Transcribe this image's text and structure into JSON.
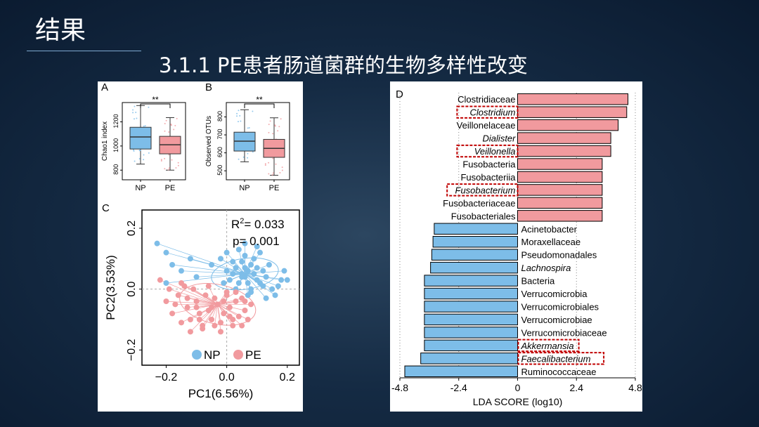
{
  "header": {
    "title": "结果",
    "subtitle": "3.1.1 PE患者肠道菌群的生物多样性改变"
  },
  "colors": {
    "np": "#7dbde8",
    "pe": "#f19a9e",
    "highlight": "#c00000"
  },
  "chart_data": [
    {
      "type": "box",
      "panel": "A",
      "ylabel": "Chao1 index",
      "categories": [
        "NP",
        "PE"
      ],
      "yticks": [
        800,
        1000,
        1200
      ],
      "ylim": [
        720,
        1360
      ],
      "significance": "**",
      "boxes": [
        {
          "min": 850,
          "q1": 975,
          "median": 1075,
          "q3": 1155,
          "max": 1335
        },
        {
          "min": 800,
          "q1": 935,
          "median": 1010,
          "q3": 1080,
          "max": 1235
        }
      ]
    },
    {
      "type": "box",
      "panel": "B",
      "ylabel": "Observed OTUs",
      "categories": [
        "NP",
        "PE"
      ],
      "yticks": [
        500,
        600,
        700,
        800
      ],
      "ylim": [
        450,
        880
      ],
      "significance": "**",
      "boxes": [
        {
          "min": 550,
          "q1": 610,
          "median": 665,
          "q3": 715,
          "max": 840
        },
        {
          "min": 475,
          "q1": 575,
          "median": 625,
          "q3": 675,
          "max": 795
        }
      ]
    },
    {
      "type": "scatter",
      "panel": "C",
      "xlabel": "PC1(6.56%)",
      "ylabel": "PC2(3.53%)",
      "xticks": [
        "−0.2",
        "0.0",
        "0.2"
      ],
      "yticks": [
        "0.2",
        "0.0",
        "−0.2"
      ],
      "xlim": [
        -0.28,
        0.24
      ],
      "ylim": [
        -0.25,
        0.26
      ],
      "r2_label": "R",
      "r2_sup": "2",
      "r2_value": "= 0.033",
      "p_text": "p= 0.001",
      "legend": [
        "NP",
        "PE"
      ],
      "centroids": [
        [
          0.06,
          0.05
        ],
        [
          -0.03,
          -0.05
        ]
      ],
      "series": [
        {
          "name": "NP",
          "x": [
            -0.23,
            -0.2,
            -0.18,
            -0.15,
            -0.12,
            -0.2,
            -0.1,
            -0.05,
            -0.02,
            0.0,
            0.01,
            0.02,
            0.03,
            0.04,
            0.05,
            0.05,
            0.06,
            0.06,
            0.07,
            0.07,
            0.08,
            0.08,
            0.09,
            0.1,
            0.1,
            0.11,
            0.12,
            0.12,
            0.13,
            0.14,
            0.15,
            0.16,
            0.18,
            0.19,
            0.04,
            0.06,
            0.08,
            0.03,
            0.02,
            0.09,
            0.11,
            0.05,
            0.07,
            0.0,
            -0.01,
            0.1,
            0.13,
            0.17,
            0.2,
            0.06
          ],
          "y": [
            0.15,
            0.12,
            0.08,
            0.06,
            0.1,
            0.02,
            0.04,
            0.08,
            0.1,
            0.06,
            0.03,
            0.05,
            0.07,
            0.02,
            0.05,
            0.09,
            0.04,
            0.11,
            0.06,
            0.02,
            0.08,
            0.0,
            0.05,
            0.07,
            0.03,
            0.12,
            0.06,
            0.01,
            0.04,
            0.08,
            0.0,
            -0.02,
            0.03,
            0.06,
            0.13,
            0.15,
            -0.01,
            0.0,
            0.09,
            0.1,
            0.02,
            0.04,
            -0.02,
            0.12,
            0.02,
            0.14,
            -0.03,
            0.01,
            0.03,
            0.07
          ]
        },
        {
          "name": "PE",
          "x": [
            -0.22,
            -0.2,
            -0.19,
            -0.18,
            -0.16,
            -0.15,
            -0.14,
            -0.13,
            -0.12,
            -0.11,
            -0.1,
            -0.09,
            -0.08,
            -0.07,
            -0.06,
            -0.05,
            -0.04,
            -0.03,
            -0.02,
            -0.01,
            0.0,
            0.01,
            0.02,
            0.03,
            0.04,
            0.05,
            0.06,
            0.07,
            0.08,
            -0.12,
            -0.08,
            -0.02,
            0.02,
            -0.15,
            -0.06,
            0.0,
            0.05,
            -0.1,
            -0.04,
            0.03,
            -0.17,
            -0.09,
            -0.01,
            0.06,
            -0.13,
            -0.05,
            0.01
          ],
          "y": [
            0.03,
            -0.04,
            0.0,
            -0.08,
            -0.02,
            -0.11,
            0.01,
            -0.06,
            -0.1,
            0.0,
            -0.04,
            -0.08,
            -0.13,
            -0.02,
            -0.07,
            -0.1,
            -0.03,
            -0.05,
            -0.11,
            -0.08,
            -0.02,
            -0.06,
            -0.12,
            -0.04,
            -0.09,
            -0.03,
            -0.07,
            -0.1,
            -0.05,
            -0.14,
            -0.12,
            -0.14,
            -0.1,
            0.02,
            0.01,
            -0.01,
            -0.12,
            -0.06,
            -0.12,
            -0.01,
            -0.05,
            -0.1,
            -0.04,
            -0.04,
            -0.03,
            -0.06,
            -0.09
          ]
        }
      ]
    },
    {
      "type": "bar",
      "panel": "D",
      "orientation": "horizontal",
      "xlabel": "LDA SCORE (log10)",
      "xticks": [
        "-4.8",
        "-2.4",
        "0",
        "2.4",
        "4.8"
      ],
      "xlim": [
        -4.8,
        4.8
      ],
      "categories": [
        "Clostridiaceae",
        "Clostridium",
        "Veillonelaceae",
        "Dialister",
        "Veillonella",
        "Fusobacteria",
        "Fusobacteriia",
        "Fusobacterium",
        "Fusobacteriaceae",
        "Fusobacteriales",
        "Acinetobacter",
        "Moraxellaceae",
        "Pseudomonadales",
        "Lachnospira",
        "Bacteria",
        "Verrucomicrobia",
        "Verrucomicrobiales",
        "Verrucomicrobiae",
        "Verrucomicrobiaceae",
        "Akkermansia",
        "Faecalibacterium",
        "Ruminococcaceae"
      ],
      "values": [
        4.5,
        4.45,
        4.1,
        3.8,
        3.8,
        3.45,
        3.45,
        3.45,
        3.45,
        3.45,
        -3.4,
        -3.45,
        -3.5,
        -3.55,
        -3.8,
        -3.8,
        -3.8,
        -3.8,
        -3.8,
        -3.8,
        -3.95,
        -4.6
      ],
      "italic": [
        false,
        true,
        false,
        true,
        true,
        false,
        false,
        true,
        false,
        false,
        false,
        false,
        false,
        true,
        false,
        false,
        false,
        false,
        false,
        true,
        true,
        false
      ],
      "highlighted": [
        false,
        true,
        false,
        false,
        true,
        false,
        false,
        true,
        false,
        false,
        false,
        false,
        false,
        false,
        false,
        false,
        false,
        false,
        false,
        true,
        true,
        false
      ]
    }
  ]
}
